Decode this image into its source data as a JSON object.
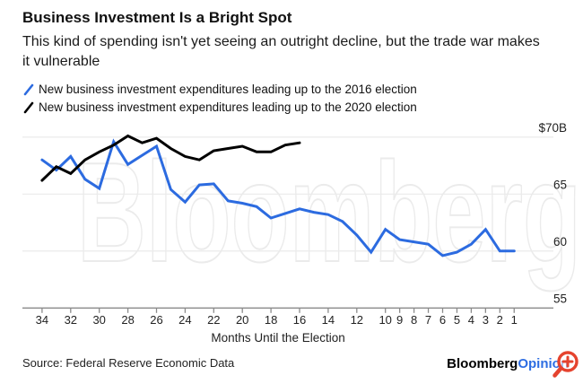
{
  "header": {
    "title": "Business Investment Is a Bright Spot",
    "subtitle": "This kind of spending isn't yet seeing an outright decline, but the trade war makes it vulnerable"
  },
  "legend": {
    "items": [
      {
        "label": "New business investment expenditures leading up to the 2016 election",
        "color": "#2c6be0"
      },
      {
        "label": "New business investment expenditures leading up to the 2020 election",
        "color": "#000000"
      }
    ]
  },
  "chart_data": {
    "type": "line",
    "title": "Business Investment Is a Bright Spot",
    "xlabel": "Months Until the Election",
    "ylabel": "",
    "x": [
      34,
      33,
      32,
      31,
      30,
      29,
      28,
      27,
      26,
      25,
      24,
      23,
      22,
      21,
      20,
      19,
      18,
      17,
      16,
      15,
      14,
      13,
      12,
      11,
      10,
      9,
      8,
      7,
      6,
      5,
      4,
      3,
      2,
      1
    ],
    "x_axis_reversed": true,
    "x_tick_labels": [
      "34",
      "32",
      "30",
      "28",
      "26",
      "24",
      "22",
      "20",
      "18",
      "16",
      "14",
      "12",
      "10",
      "9",
      "8",
      "7",
      "6",
      "5",
      "4",
      "3",
      "2",
      "1"
    ],
    "ylim": [
      55,
      71.5
    ],
    "y_ticks": [
      {
        "value": 70,
        "label": "$70B"
      },
      {
        "value": 65,
        "label": "65"
      },
      {
        "value": 60,
        "label": "60"
      },
      {
        "value": 55,
        "label": "55"
      }
    ],
    "grid": "horizontal",
    "legend_position": "top-left",
    "watermark": "Bloomberg",
    "series": [
      {
        "name": "New business investment expenditures leading up to the 2016 election",
        "color": "#2c6be0",
        "values": [
          68.0,
          67.1,
          68.3,
          66.3,
          65.5,
          69.6,
          67.6,
          68.4,
          69.2,
          65.4,
          64.3,
          65.8,
          65.9,
          64.4,
          64.2,
          63.9,
          62.9,
          63.3,
          63.7,
          63.4,
          63.2,
          62.6,
          61.4,
          59.9,
          61.9,
          61.0,
          60.8,
          60.6,
          59.6,
          59.9,
          60.6,
          61.9,
          60.0,
          60.0
        ]
      },
      {
        "name": "New business investment expenditures leading up to the 2020 election",
        "color": "#000000",
        "values": [
          66.2,
          67.4,
          66.8,
          68.0,
          68.7,
          69.3,
          70.1,
          69.5,
          69.9,
          69.0,
          68.3,
          68.0,
          68.8,
          69.0,
          69.2,
          68.7,
          68.7,
          69.3,
          69.5,
          null,
          null,
          null,
          null,
          null,
          null,
          null,
          null,
          null,
          null,
          null,
          null,
          null,
          null,
          null
        ]
      }
    ]
  },
  "footer": {
    "source": "Source: Federal Reserve Economic Data",
    "brand": "Bloomberg",
    "brand_suffix": "Opinion"
  },
  "colors": {
    "accent_blue": "#2c6be0",
    "brand_opinion_blue": "#2d6de2",
    "magnifier_red": "#e5432e",
    "gridline": "#e9e9e9",
    "axis": "#8a8a8a",
    "watermark_stroke": "#ebebeb"
  }
}
